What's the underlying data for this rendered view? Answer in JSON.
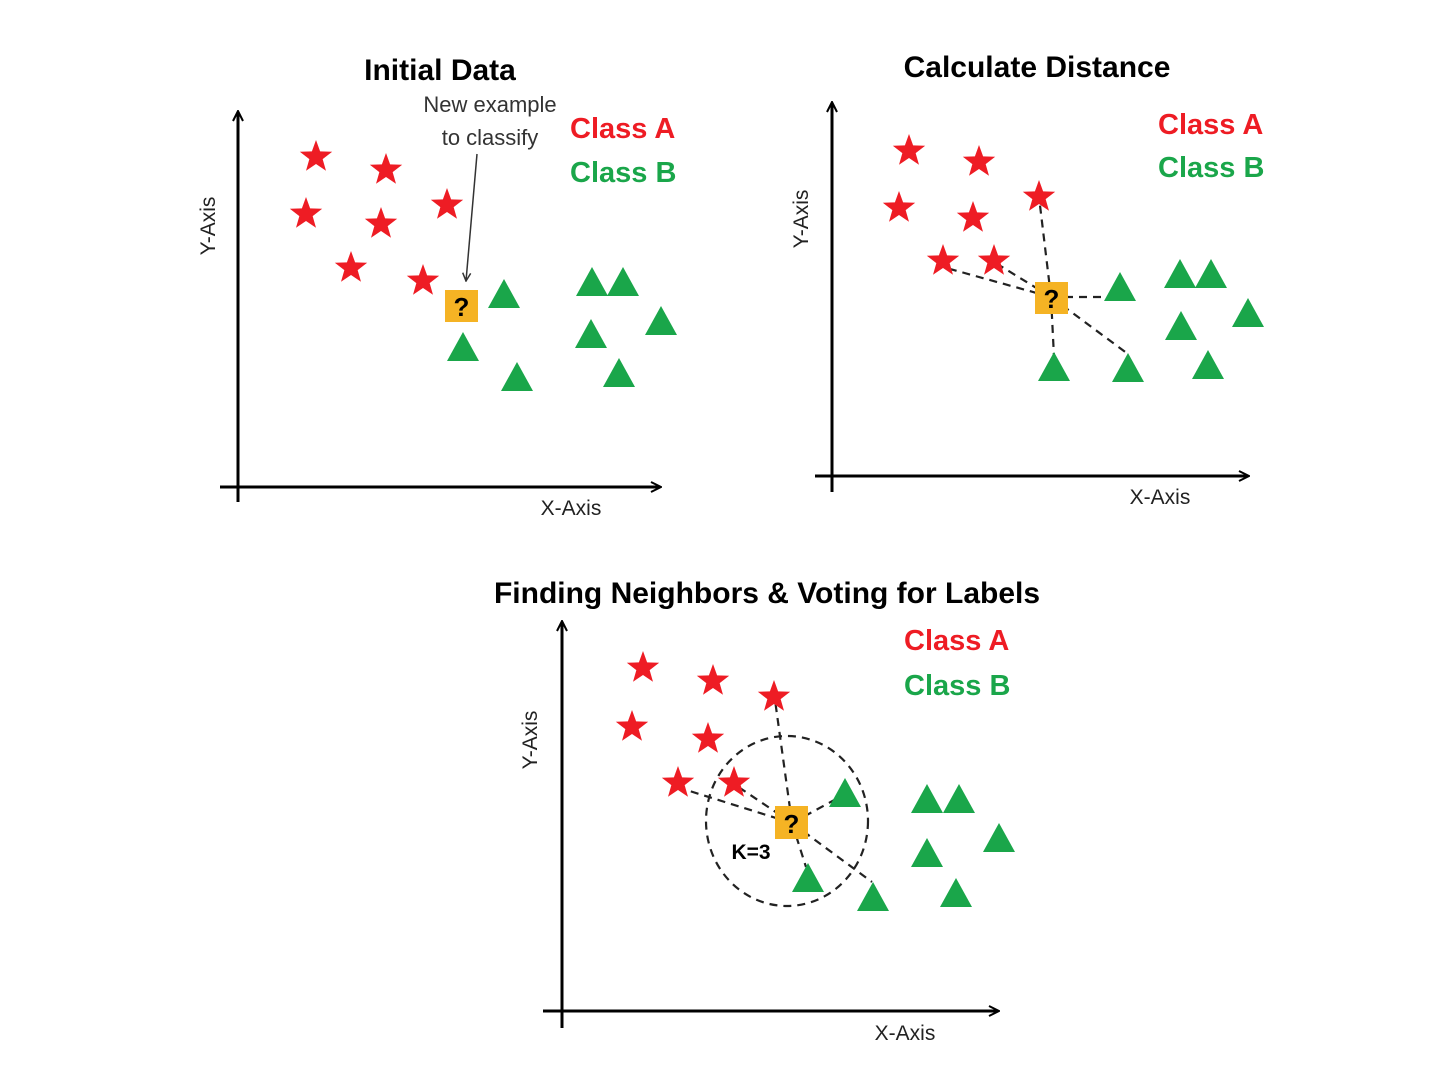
{
  "colors": {
    "class_a": "#ee1c24",
    "class_b": "#1aa64a",
    "query": "#f5b324",
    "axis": "#000000",
    "dash": "#222222"
  },
  "icons": {
    "class_a_marker": "star-icon",
    "class_b_marker": "triangle-icon",
    "query_marker": "question-box-icon"
  },
  "legend": {
    "class_a": "Class A",
    "class_b": "Class B"
  },
  "query_symbol": "?",
  "panels": [
    {
      "id": "initial",
      "title": "Initial Data",
      "x_axis": "X-Axis",
      "y_axis": "Y-Axis",
      "annotation": [
        "New example",
        "to classify"
      ]
    },
    {
      "id": "distance",
      "title": "Calculate Distance",
      "x_axis": "X-Axis",
      "y_axis": "Y-Axis"
    },
    {
      "id": "neighbors",
      "title": "Finding Neighbors & Voting for Labels",
      "x_axis": "X-Axis",
      "y_axis": "Y-Axis",
      "k_label": "K=3"
    }
  ]
}
